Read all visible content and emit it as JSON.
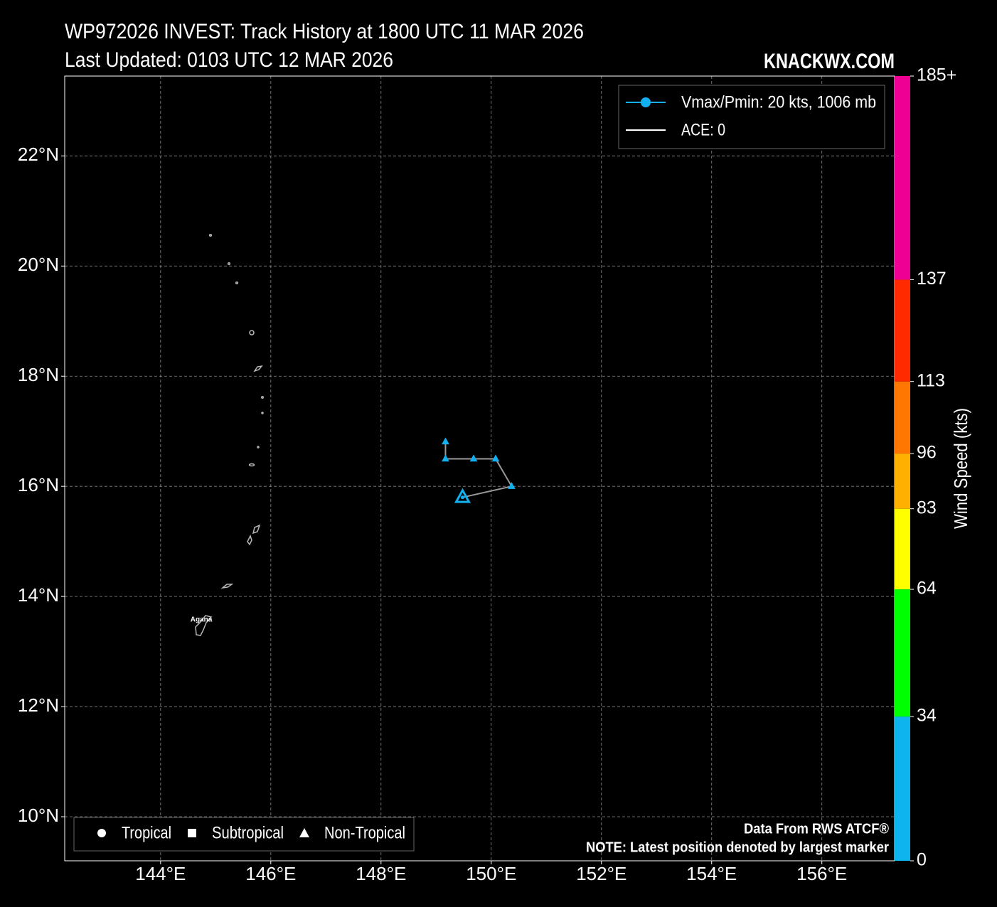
{
  "chart_data": {
    "type": "track",
    "title": "WP972026 INVEST: Track History at 1800 UTC 11 MAR 2026",
    "subtitle": "Last Updated: 0103 UTC 12 MAR 2026",
    "brand": "KNACKWX.COM",
    "xlim": [
      142.26,
      157.32
    ],
    "ylim": [
      9.2,
      23.45
    ],
    "xticks": [
      {
        "value": 144,
        "label": "144°E"
      },
      {
        "value": 146,
        "label": "146°E"
      },
      {
        "value": 148,
        "label": "148°E"
      },
      {
        "value": 150,
        "label": "150°E"
      },
      {
        "value": 152,
        "label": "152°E"
      },
      {
        "value": 154,
        "label": "154°E"
      },
      {
        "value": 156,
        "label": "156°E"
      }
    ],
    "yticks": [
      {
        "value": 10,
        "label": "10°N"
      },
      {
        "value": 12,
        "label": "12°N"
      },
      {
        "value": 14,
        "label": "14°N"
      },
      {
        "value": 16,
        "label": "16°N"
      },
      {
        "value": 18,
        "label": "18°N"
      },
      {
        "value": 20,
        "label": "20°N"
      },
      {
        "value": 22,
        "label": "22°N"
      }
    ],
    "grid": true,
    "series": [
      {
        "name": "Vmax/Pmin: 20 kts, 1006 mb",
        "color": "#12b0ee",
        "x": [
          149.17,
          149.17,
          149.68,
          150.08,
          150.37,
          149.48
        ],
        "y": [
          16.81,
          16.5,
          16.5,
          16.5,
          16.0,
          15.8
        ]
      }
    ],
    "ace_label": "ACE: 0",
    "marker_legend": [
      "Tropical",
      "Subtropical",
      "Non-Tropical"
    ],
    "place_labels": [
      "Agana"
    ],
    "notes": [
      "Data From RWS ATCF®",
      "NOTE: Latest position denoted by largest marker"
    ],
    "colorbar": {
      "label": "Wind Speed (kts)",
      "lim": [
        0,
        185
      ],
      "bounds": [
        0,
        34,
        64,
        83,
        96,
        113,
        137,
        {
          "value": 185,
          "label": "185+"
        }
      ],
      "colors": [
        "#0db4ee",
        "#00ff00",
        "#ffff00",
        "#ffb000",
        "#ff7600",
        "#ff2a00",
        "#ee0095"
      ]
    }
  }
}
